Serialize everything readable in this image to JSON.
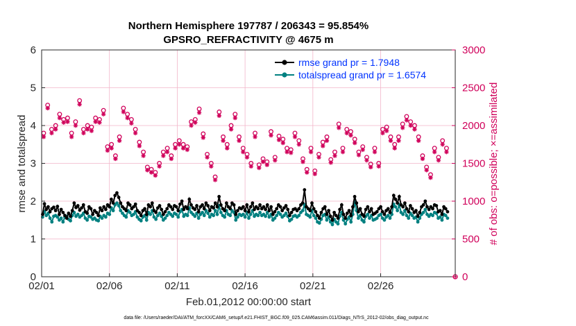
{
  "chart_data": {
    "type": "line",
    "title_line1": "Northern Hemisphere 197787 / 206343 = 95.854%",
    "title_line2": "GPSRO_REFRACTIVITY @ 4675 m",
    "xlabel": "Feb.01,2012 00:00:00 start",
    "ylabel_left": "rmse and totalspread",
    "ylabel_right": "# of obs: o=possible; ×=assimilated",
    "xlim": [
      0,
      30.5
    ],
    "ylim_left": [
      0,
      6
    ],
    "ylim_right": [
      0,
      3000
    ],
    "x_ticks": [
      0,
      5,
      10,
      15,
      20,
      25
    ],
    "x_tick_labels": [
      "02/01",
      "02/06",
      "02/11",
      "02/16",
      "02/21",
      "02/26"
    ],
    "y_left_ticks": [
      0,
      1,
      2,
      3,
      4,
      5,
      6
    ],
    "y_right_ticks": [
      0,
      500,
      1000,
      1500,
      2000,
      2500,
      3000
    ],
    "grid": true,
    "legend_position": "top-right",
    "colors": {
      "rmse": "#000000",
      "spread": "#008080",
      "obs": "#d0005a",
      "legend_text": "#0033ff",
      "grid": "#f2b5c9"
    },
    "series": [
      {
        "name": "rmse",
        "legend": "rmse grand pr = 1.7948",
        "axis": "left",
        "values": [
          1.65,
          1.93,
          1.78,
          1.85,
          1.72,
          1.8,
          1.84,
          1.75,
          1.86,
          1.65,
          1.78,
          1.7,
          1.62,
          1.55,
          1.68,
          1.6,
          1.75,
          1.95,
          1.83,
          1.88,
          1.76,
          1.82,
          1.9,
          1.72,
          1.68,
          1.85,
          1.8,
          1.65,
          1.75,
          1.7,
          1.62,
          1.82,
          1.75,
          1.85,
          1.78,
          1.9,
          1.85,
          2.05,
          1.95,
          2.15,
          2.22,
          2.1,
          1.95,
          1.85,
          1.8,
          1.75,
          1.95,
          1.9,
          1.8,
          1.85,
          1.92,
          1.75,
          1.7,
          1.62,
          1.75,
          1.8,
          1.65,
          1.9,
          1.85,
          1.95,
          1.75,
          1.7,
          1.82,
          1.88,
          1.78,
          1.65,
          1.72,
          1.8,
          1.9,
          1.85,
          1.78,
          1.88,
          1.85,
          1.75,
          1.92,
          2.0,
          1.78,
          1.85,
          1.8,
          2.05,
          1.9,
          1.82,
          1.78,
          1.88,
          1.72,
          1.85,
          1.9,
          1.8,
          1.95,
          1.88,
          1.75,
          1.85,
          1.82,
          1.95,
          1.85,
          2.12,
          1.9,
          1.8,
          1.75,
          1.95,
          1.85,
          1.8,
          1.95,
          1.9,
          1.65,
          1.75,
          1.82,
          1.8,
          1.85,
          1.75,
          1.9,
          1.72,
          1.85,
          1.95,
          1.78,
          1.85,
          1.8,
          1.9,
          1.8,
          1.85,
          1.78,
          1.9,
          1.75,
          1.85,
          1.65,
          1.72,
          1.8,
          1.9,
          1.85,
          1.75,
          1.82,
          1.88,
          1.78,
          1.62,
          1.7,
          1.78,
          1.8,
          1.75,
          1.8,
          1.9,
          1.95,
          2.3,
          1.85,
          1.8,
          1.75,
          1.95,
          1.8,
          1.72,
          1.62,
          1.55,
          1.7,
          1.8,
          1.85,
          1.65,
          1.75,
          1.6,
          1.5,
          1.7,
          1.62,
          1.55,
          1.78,
          1.9,
          1.65,
          1.55,
          1.68,
          1.75,
          1.62,
          1.85,
          2.12,
          1.95,
          1.72,
          1.8,
          1.65,
          1.6,
          1.78,
          1.85,
          1.72,
          1.8,
          1.65,
          1.68,
          1.72,
          1.8,
          1.85,
          1.72,
          1.65,
          1.75,
          1.8,
          1.7,
          1.85,
          2.15,
          2.05,
          1.95,
          2.12,
          1.9,
          1.85,
          1.95,
          1.8,
          1.72,
          1.88,
          1.8,
          1.7,
          1.75,
          1.6,
          1.7,
          1.85,
          1.9,
          2.0,
          1.85,
          1.78,
          1.85,
          1.8,
          1.9,
          1.88,
          1.72,
          1.75,
          1.65,
          1.85,
          1.8,
          1.72
        ]
      },
      {
        "name": "totalspread",
        "legend": "totalspread grand pr = 1.6574",
        "axis": "left",
        "values": [
          1.58,
          1.72,
          1.62,
          1.68,
          1.55,
          1.45,
          1.6,
          1.62,
          1.58,
          1.5,
          1.55,
          1.45,
          1.58,
          1.6,
          1.52,
          1.48,
          1.62,
          1.7,
          1.6,
          1.65,
          1.58,
          1.62,
          1.68,
          1.55,
          1.5,
          1.6,
          1.58,
          1.52,
          1.55,
          1.5,
          1.48,
          1.6,
          1.55,
          1.62,
          1.58,
          1.68,
          1.65,
          1.82,
          1.75,
          1.9,
          1.95,
          1.88,
          1.75,
          1.68,
          1.62,
          1.58,
          1.75,
          1.7,
          1.62,
          1.65,
          1.72,
          1.58,
          1.52,
          1.48,
          1.58,
          1.62,
          1.5,
          1.7,
          1.65,
          1.75,
          1.58,
          1.52,
          1.62,
          1.68,
          1.6,
          1.5,
          1.55,
          1.62,
          1.7,
          1.65,
          1.6,
          1.68,
          1.65,
          1.58,
          1.72,
          1.78,
          1.6,
          1.65,
          1.62,
          1.82,
          1.7,
          1.65,
          1.6,
          1.68,
          1.55,
          1.65,
          1.7,
          1.62,
          1.75,
          1.68,
          1.58,
          1.65,
          1.62,
          1.75,
          1.65,
          1.88,
          1.7,
          1.62,
          1.58,
          1.75,
          1.65,
          1.62,
          1.75,
          1.7,
          1.5,
          1.58,
          1.65,
          1.62,
          1.65,
          1.58,
          1.7,
          1.55,
          1.65,
          1.75,
          1.6,
          1.65,
          1.62,
          1.7,
          1.62,
          1.65,
          1.6,
          1.7,
          1.58,
          1.65,
          1.5,
          1.55,
          1.62,
          1.7,
          1.65,
          1.58,
          1.62,
          1.68,
          1.6,
          1.48,
          1.52,
          1.6,
          1.62,
          1.58,
          1.62,
          1.7,
          1.75,
          1.9,
          1.65,
          1.62,
          1.58,
          1.75,
          1.62,
          1.55,
          1.45,
          1.42,
          1.52,
          1.62,
          1.65,
          1.5,
          1.58,
          1.45,
          1.38,
          1.52,
          1.45,
          1.4,
          1.6,
          1.7,
          1.5,
          1.4,
          1.52,
          1.58,
          1.45,
          1.65,
          1.98,
          1.75,
          1.55,
          1.62,
          1.5,
          1.45,
          1.6,
          1.65,
          1.55,
          1.62,
          1.5,
          1.52,
          1.55,
          1.62,
          1.65,
          1.55,
          1.5,
          1.58,
          1.62,
          1.55,
          1.65,
          1.92,
          1.85,
          1.75,
          1.9,
          1.7,
          1.65,
          1.75,
          1.62,
          1.55,
          1.68,
          1.62,
          1.55,
          1.58,
          1.45,
          1.55,
          1.65,
          1.7,
          1.78,
          1.65,
          1.6,
          1.65,
          1.62,
          1.7,
          1.68,
          1.55,
          1.58,
          1.5,
          1.65,
          1.62,
          1.55
        ]
      },
      {
        "name": "possible",
        "marker": "o",
        "axis": "right",
        "values": [
          1900,
          2270,
          1950,
          2000,
          2150,
          2080,
          2100,
          1900,
          2050,
          2330,
          1950,
          2000,
          1980,
          2100,
          2080,
          2200,
          1720,
          1750,
          1600,
          1850,
          2230,
          2150,
          2080,
          1950,
          1780,
          1650,
          1450,
          1420,
          1380,
          1500,
          1650,
          1700,
          1600,
          1750,
          1800,
          1750,
          1720,
          2050,
          2080,
          2220,
          1890,
          1620,
          1500,
          1320,
          2180,
          1850,
          1750,
          2000,
          2150,
          1850,
          1700,
          1620,
          1500,
          1900,
          1480,
          1560,
          1520,
          1920,
          1580,
          1860,
          1820,
          1700,
          1680,
          1900,
          1800,
          1560,
          1420,
          1700,
          1400,
          1620,
          1780,
          1850,
          1550,
          1650,
          2020,
          1700,
          1950,
          1920,
          1820,
          1650,
          1720,
          1580,
          1490,
          1700,
          1500,
          1950,
          1980,
          1850,
          1750,
          1850,
          2020,
          2120,
          2050,
          2000,
          1850,
          1600,
          1450,
          1350,
          1700,
          1580,
          1800,
          1700
        ]
      },
      {
        "name": "assimilated",
        "marker": "x",
        "axis": "right",
        "values": [
          1850,
          2230,
          1900,
          1950,
          2100,
          2040,
          2050,
          1850,
          2000,
          2280,
          1900,
          1950,
          1930,
          2050,
          2040,
          2150,
          1670,
          1700,
          1560,
          1800,
          2180,
          2100,
          2030,
          1900,
          1730,
          1600,
          1410,
          1380,
          1340,
          1460,
          1600,
          1650,
          1560,
          1700,
          1750,
          1700,
          1680,
          2000,
          2040,
          2170,
          1840,
          1580,
          1460,
          1280,
          2130,
          1800,
          1700,
          1950,
          2100,
          1800,
          1650,
          1580,
          1460,
          1850,
          1440,
          1520,
          1480,
          1870,
          1540,
          1810,
          1770,
          1650,
          1640,
          1850,
          1750,
          1520,
          1380,
          1650,
          1360,
          1580,
          1730,
          1800,
          1510,
          1600,
          1970,
          1650,
          1900,
          1870,
          1770,
          1610,
          1680,
          1540,
          1450,
          1650,
          1460,
          1900,
          1930,
          1800,
          1700,
          1800,
          1970,
          2070,
          2000,
          1950,
          1800,
          1560,
          1410,
          1310,
          1650,
          1540,
          1750,
          1650
        ]
      }
    ]
  },
  "footer": "data file: /Users/raeder/DAI/ATM_forcXX/CAM6_setup/f.e21.FHIST_BGC.f09_025.CAM6assim.011/Diags_NTrS_2012-02/obs_diag_output.nc"
}
